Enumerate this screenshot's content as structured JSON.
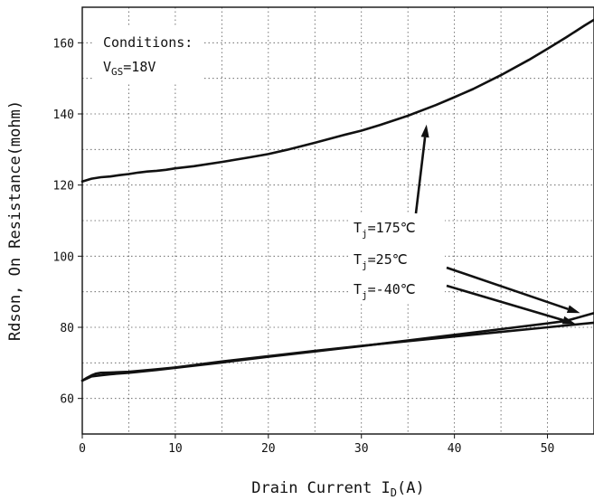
{
  "chart_data": {
    "type": "line",
    "title": "",
    "xlabel": "Drain Current I",
    "xlabel_sub": "D",
    "xlabel_suffix": "(A)",
    "ylabel": "Rdson, On Resistance(mohm)",
    "xlim": [
      0,
      55
    ],
    "ylim": [
      50,
      170
    ],
    "x_ticks": [
      0,
      10,
      20,
      30,
      40,
      50
    ],
    "y_ticks": [
      60,
      80,
      100,
      120,
      140,
      160
    ],
    "grid": true,
    "conditions": {
      "line1": "Conditions:",
      "line2_prefix": "V",
      "line2_sub": "GS",
      "line2_suffix": "=18V"
    },
    "series": [
      {
        "label_prefix": "T",
        "label_sub": "j",
        "label_suffix": "=175℃",
        "x": [
          0,
          1,
          2,
          3,
          4,
          5,
          6,
          7,
          8,
          9,
          10,
          12,
          15,
          18,
          20,
          22,
          25,
          28,
          30,
          32,
          35,
          38,
          40,
          42,
          45,
          48,
          50,
          52,
          54,
          55
        ],
        "y": [
          121,
          121.8,
          122.2,
          122.4,
          122.8,
          123.1,
          123.5,
          123.8,
          124,
          124.3,
          124.7,
          125.3,
          126.5,
          127.8,
          128.7,
          129.9,
          131.9,
          134,
          135.3,
          136.9,
          139.5,
          142.5,
          144.7,
          147,
          150.9,
          155.2,
          158.3,
          161.5,
          164.9,
          166.5
        ],
        "arrow_tip": [
          37,
          137
        ]
      },
      {
        "label_prefix": "T",
        "label_sub": "j",
        "label_suffix": "=25℃",
        "x": [
          0,
          1,
          2,
          3,
          5,
          8,
          10,
          15,
          20,
          25,
          30,
          35,
          40,
          45,
          50,
          52,
          55
        ],
        "y": [
          65,
          66.2,
          66.5,
          66.8,
          67.2,
          68,
          68.6,
          70.1,
          71.7,
          73.2,
          74.7,
          76.3,
          77.9,
          79.5,
          81.1,
          81.8,
          84
        ],
        "arrow_tip": [
          53.5,
          84
        ]
      },
      {
        "label_prefix": "T",
        "label_sub": "j",
        "label_suffix": "=-40℃",
        "x": [
          0,
          0.5,
          1,
          1.5,
          2,
          3,
          5,
          8,
          10,
          15,
          20,
          25,
          30,
          35,
          40,
          45,
          50,
          55
        ],
        "y": [
          65,
          65.8,
          66.5,
          67,
          67.2,
          67.3,
          67.5,
          68.2,
          68.7,
          70.4,
          71.9,
          73.4,
          74.8,
          76.1,
          77.4,
          78.7,
          80,
          81.3
        ],
        "arrow_tip": [
          53,
          81
        ]
      }
    ]
  }
}
